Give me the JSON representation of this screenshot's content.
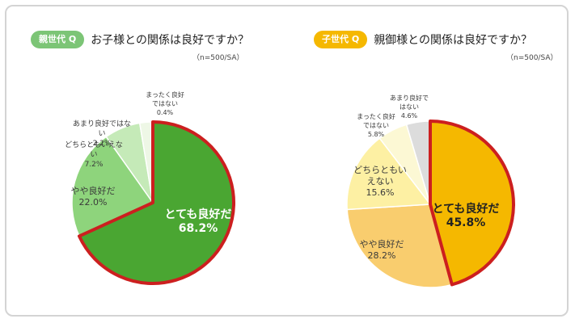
{
  "chart_data": [
    {
      "type": "pie",
      "badge": "親世代 Q",
      "title": "お子様との関係は良好ですか？",
      "note": "（n=500/SA）",
      "badge_color": "#7cc576",
      "highlight_border": "#cc1f1f",
      "slices": [
        {
          "label": [
            "とても良好だ"
          ],
          "value_text": "68.2%",
          "value": 68.2,
          "color": "#4aa632",
          "text_color": "#ffffff",
          "highlight": true
        },
        {
          "label": [
            "やや良好だ"
          ],
          "value_text": "22.0%",
          "value": 22.0,
          "color": "#8ed47c",
          "text_color": "#3a3a3a",
          "highlight": false
        },
        {
          "label": [
            "どちらともいえな",
            "い"
          ],
          "value_text": "7.2%",
          "value": 7.2,
          "color": "#c5eab8",
          "text_color": "#3a3a3a",
          "highlight": false
        },
        {
          "label": [
            "あまり良好ではな",
            "い"
          ],
          "value_text": "2.2%",
          "value": 2.2,
          "color": "#eef7e6",
          "text_color": "#3a3a3a",
          "highlight": false
        },
        {
          "label": [
            "まったく良好",
            "ではない"
          ],
          "value_text": "0.4%",
          "value": 0.4,
          "color": "#d6d6d6",
          "text_color": "#3a3a3a",
          "highlight": false
        }
      ]
    },
    {
      "type": "pie",
      "badge": "子世代 Q",
      "title": "親御様との関係は良好ですか？",
      "note": "（n=500/SA）",
      "badge_color": "#f5b800",
      "highlight_border": "#cc1f1f",
      "slices": [
        {
          "label": [
            "とても良好だ"
          ],
          "value_text": "45.8%",
          "value": 45.8,
          "color": "#f5b800",
          "text_color": "#222222",
          "highlight": true
        },
        {
          "label": [
            "やや良好だ"
          ],
          "value_text": "28.2%",
          "value": 28.2,
          "color": "#f9cd6e",
          "text_color": "#3a3a3a",
          "highlight": false
        },
        {
          "label": [
            "どちらともい",
            "えない"
          ],
          "value_text": "15.6%",
          "value": 15.6,
          "color": "#fdf0a3",
          "text_color": "#3a3a3a",
          "highlight": false
        },
        {
          "label": [
            "まったく良好",
            "ではない"
          ],
          "value_text": "5.8%",
          "value": 5.8,
          "color": "#fcf8d4",
          "text_color": "#3a3a3a",
          "highlight": false
        },
        {
          "label": [
            "あまり良好で",
            "はない"
          ],
          "value_text": "4.6%",
          "value": 4.6,
          "color": "#dcdcdc",
          "text_color": "#3a3a3a",
          "highlight": false
        }
      ]
    }
  ]
}
